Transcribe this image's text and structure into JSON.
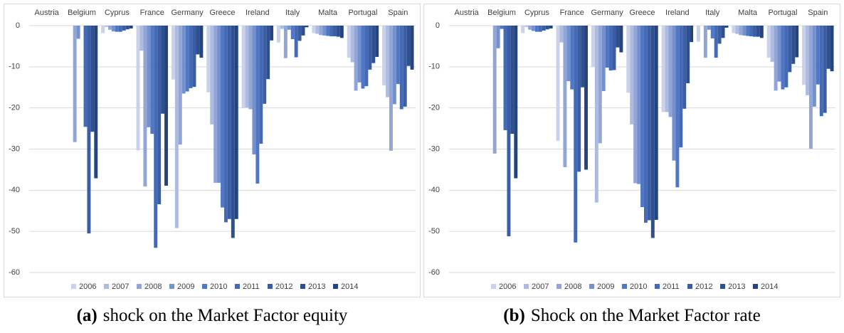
{
  "chart_data": [
    {
      "type": "bar",
      "caption_label": "(a)",
      "caption": "shock on the Market Factor equity",
      "categories": [
        "Austria",
        "Belgium",
        "Cyprus",
        "France",
        "Germany",
        "Greece",
        "Ireland",
        "Italy",
        "Malta",
        "Portugal",
        "Spain"
      ],
      "ylim": [
        -60,
        0
      ],
      "yticks": [
        0,
        -10,
        -20,
        -30,
        -40,
        -50,
        -60
      ],
      "grid": true,
      "legend": "bottom",
      "series": [
        {
          "name": "2006",
          "color": "#c9d2ea",
          "values": [
            0,
            0,
            -1.8,
            -30.3,
            -13.1,
            -16.2,
            -20,
            -4.1,
            -1.8,
            -7.8,
            -14.5
          ]
        },
        {
          "name": "2007",
          "color": "#adbbe0",
          "values": [
            0,
            0,
            -0.3,
            -6.1,
            -49.2,
            -24,
            -19.9,
            -0.8,
            -2,
            -8.9,
            -17.4
          ]
        },
        {
          "name": "2008",
          "color": "#91a5d6",
          "values": [
            0,
            -28.3,
            -1,
            -39.1,
            -28.9,
            -38.2,
            -20.3,
            -7.9,
            -2.3,
            -15.8,
            -30.4
          ]
        },
        {
          "name": "2009",
          "color": "#7591cd",
          "values": [
            0,
            -3.2,
            -1.4,
            -24.7,
            -16.5,
            -38.2,
            -31.3,
            -1,
            -2.4,
            -13.8,
            -19.1
          ]
        },
        {
          "name": "2010",
          "color": "#5077c5",
          "values": [
            0,
            0,
            -1.5,
            -26.3,
            -16,
            -44.2,
            -38.4,
            -3.3,
            -2.5,
            -15.3,
            -14.2
          ]
        },
        {
          "name": "2011",
          "color": "#446ab6",
          "values": [
            0,
            -24.6,
            -1.5,
            -54,
            -15.2,
            -47.8,
            -28.7,
            -7.7,
            -2.6,
            -14.7,
            -20.3
          ]
        },
        {
          "name": "2012",
          "color": "#3a5da4",
          "values": [
            0,
            -50.5,
            -1.2,
            -43.4,
            -14.9,
            -47,
            -19,
            -3.7,
            -2.6,
            -10.7,
            -19.7
          ]
        },
        {
          "name": "2013",
          "color": "#2f5090",
          "values": [
            0,
            -25.8,
            -0.9,
            -21.4,
            -7,
            -51.6,
            -13,
            -2.4,
            -2.7,
            -9.1,
            -9.8
          ]
        },
        {
          "name": "2014",
          "color": "#25437c",
          "values": [
            0,
            -37.1,
            -0.7,
            -38.9,
            -7.8,
            -47,
            -3.6,
            -0.4,
            -3,
            -7.6,
            -10.7
          ]
        }
      ]
    },
    {
      "type": "bar",
      "caption_label": "(b)",
      "caption": "Shock on the Market Factor rate",
      "categories": [
        "Austria",
        "Belgium",
        "Cyprus",
        "France",
        "Germany",
        "Greece",
        "Ireland",
        "Italy",
        "Malta",
        "Portugal",
        "Spain"
      ],
      "ylim": [
        -60,
        0
      ],
      "yticks": [
        0,
        -10,
        -20,
        -30,
        -40,
        -50,
        -60
      ],
      "grid": true,
      "legend": "bottom",
      "series": [
        {
          "name": "2006",
          "color": "#c9d2ea",
          "values": [
            0,
            0,
            -1.8,
            -28,
            -10,
            -16.3,
            -21,
            -3.9,
            -1.8,
            -7.8,
            -14.4
          ]
        },
        {
          "name": "2007",
          "color": "#adbbe0",
          "values": [
            0,
            0,
            -0.3,
            -4.1,
            -43,
            -24,
            -21,
            0,
            -2,
            -8.8,
            -16.9
          ]
        },
        {
          "name": "2008",
          "color": "#91a5d6",
          "values": [
            0,
            -31.1,
            -1,
            -34.4,
            -28.6,
            -38.3,
            -22.2,
            -7.8,
            -2.3,
            -15.8,
            -29.9
          ]
        },
        {
          "name": "2009",
          "color": "#7591cd",
          "values": [
            0,
            -5.5,
            -1.3,
            -13.5,
            -15.9,
            -38.5,
            -32.8,
            -1,
            -2.4,
            -13.6,
            -19.7
          ]
        },
        {
          "name": "2010",
          "color": "#5077c5",
          "values": [
            0,
            -0.8,
            -1.5,
            -15.5,
            -10.2,
            -44.1,
            -39.3,
            -3.1,
            -2.5,
            -15.5,
            -14.3
          ]
        },
        {
          "name": "2011",
          "color": "#446ab6",
          "values": [
            0,
            -25.4,
            -1.5,
            -52.7,
            -10.9,
            -47.9,
            -29.6,
            -7.8,
            -2.6,
            -15,
            -22
          ]
        },
        {
          "name": "2012",
          "color": "#3a5da4",
          "values": [
            0,
            -51.2,
            -1.2,
            -35.5,
            -10.8,
            -47.3,
            -20.2,
            -4.4,
            -2.7,
            -11.3,
            -21.2
          ]
        },
        {
          "name": "2013",
          "color": "#2f5090",
          "values": [
            0,
            -26.3,
            -0.9,
            -15,
            -5.3,
            -51.6,
            -14,
            -3,
            -2.7,
            -9.3,
            -10.5
          ]
        },
        {
          "name": "2014",
          "color": "#25437c",
          "values": [
            0,
            -37.1,
            -0.7,
            -35,
            -6.5,
            -47.2,
            -4,
            -0.5,
            -3,
            -7.7,
            -11.1
          ]
        }
      ]
    }
  ]
}
